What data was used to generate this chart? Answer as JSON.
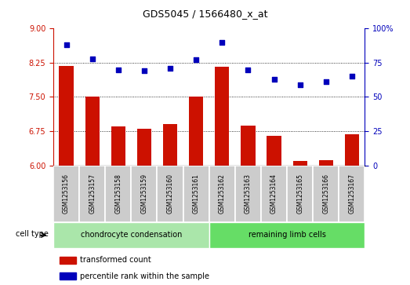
{
  "title": "GDS5045 / 1566480_x_at",
  "samples": [
    "GSM1253156",
    "GSM1253157",
    "GSM1253158",
    "GSM1253159",
    "GSM1253160",
    "GSM1253161",
    "GSM1253162",
    "GSM1253163",
    "GSM1253164",
    "GSM1253165",
    "GSM1253166",
    "GSM1253167"
  ],
  "red_values": [
    8.18,
    7.5,
    6.85,
    6.8,
    6.9,
    7.5,
    8.17,
    6.87,
    6.65,
    6.1,
    6.12,
    6.68
  ],
  "blue_values": [
    88,
    78,
    70,
    69,
    71,
    77,
    90,
    70,
    63,
    59,
    61,
    65
  ],
  "cell_type_groups": [
    {
      "label": "chondrocyte condensation",
      "indices": [
        0,
        1,
        2,
        3,
        4,
        5
      ],
      "color": "#aae6aa"
    },
    {
      "label": "remaining limb cells",
      "indices": [
        6,
        7,
        8,
        9,
        10,
        11
      ],
      "color": "#66dd66"
    }
  ],
  "ylim_left": [
    6,
    9
  ],
  "ylim_right": [
    0,
    100
  ],
  "yticks_left": [
    6,
    6.75,
    7.5,
    8.25,
    9
  ],
  "yticks_right": [
    0,
    25,
    50,
    75,
    100
  ],
  "hlines": [
    6.75,
    7.5,
    8.25
  ],
  "bar_color": "#cc1100",
  "dot_color": "#0000bb",
  "label_bg": "#cccccc",
  "cell_type_label": "cell type",
  "legend_red": "transformed count",
  "legend_blue": "percentile rank within the sample",
  "title_fontsize": 9,
  "tick_fontsize": 7,
  "label_fontsize": 5.5,
  "ct_fontsize": 7,
  "legend_fontsize": 7
}
